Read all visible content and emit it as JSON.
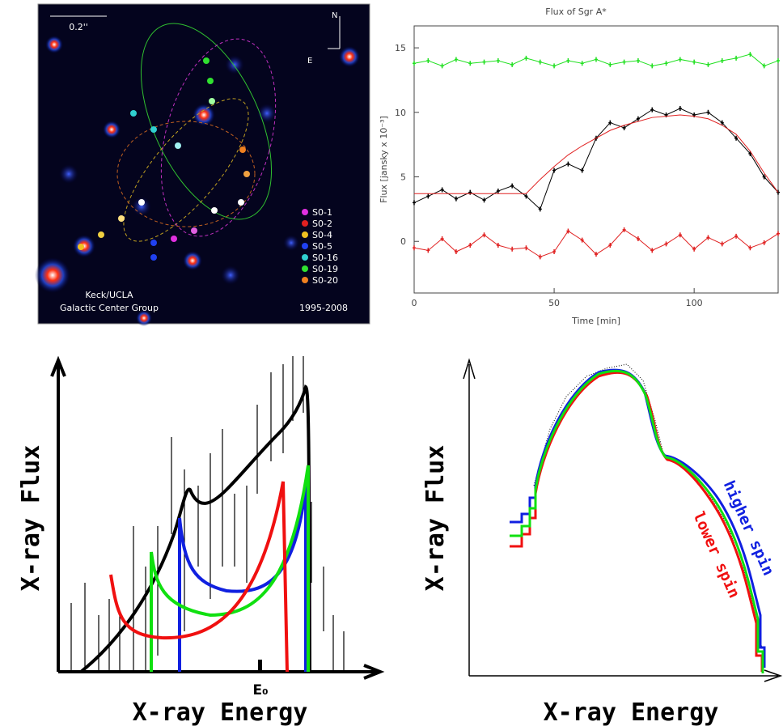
{
  "star_map": {
    "scale": "0.2''",
    "north": "N",
    "east": "E",
    "credit": [
      "Keck/UCLA",
      "Galactic Center Group"
    ],
    "years": "1995-2008",
    "legend": [
      {
        "name": "S0-1",
        "color": "#e030e0"
      },
      {
        "name": "S0-2",
        "color": "#e02020"
      },
      {
        "name": "S0-4",
        "color": "#f0c020"
      },
      {
        "name": "S0-5",
        "color": "#2040f0"
      },
      {
        "name": "S0-16",
        "color": "#30d0d0"
      },
      {
        "name": "S0-19",
        "color": "#30e030"
      },
      {
        "name": "S0-20",
        "color": "#f08020"
      }
    ]
  },
  "chart_data": {
    "type": "line",
    "title": "Flux of Sgr A*",
    "x_label": "Time [min]",
    "y_label": "Flux [jansky x 10⁻³]",
    "x": [
      0,
      5,
      10,
      15,
      20,
      25,
      30,
      35,
      40,
      45,
      50,
      55,
      60,
      65,
      70,
      75,
      80,
      85,
      90,
      95,
      100,
      105,
      110,
      115,
      120,
      125,
      130
    ],
    "series": [
      {
        "color": "#20e020",
        "mode": "markers",
        "values": [
          13.8,
          14.0,
          13.6,
          14.1,
          13.8,
          13.9,
          14.0,
          13.7,
          14.2,
          13.9,
          13.6,
          14.0,
          13.8,
          14.1,
          13.7,
          13.9,
          14.0,
          13.6,
          13.8,
          14.1,
          13.9,
          13.7,
          14.0,
          14.2,
          14.5,
          13.6,
          14.0
        ]
      },
      {
        "color": "#000000",
        "mode": "markers",
        "values": [
          3.0,
          3.5,
          4.0,
          3.3,
          3.8,
          3.2,
          3.9,
          4.3,
          3.5,
          2.5,
          5.5,
          6.0,
          5.5,
          8.0,
          9.2,
          8.8,
          9.5,
          10.2,
          9.8,
          10.3,
          9.8,
          10.0,
          9.2,
          8.0,
          6.8,
          5.0,
          3.8
        ]
      },
      {
        "color": "#e02020",
        "mode": "markers",
        "values": [
          -0.5,
          -0.7,
          0.2,
          -0.8,
          -0.3,
          0.5,
          -0.3,
          -0.6,
          -0.5,
          -1.2,
          -0.8,
          0.8,
          0.1,
          -1.0,
          -0.3,
          0.9,
          0.2,
          -0.7,
          -0.2,
          0.5,
          -0.6,
          0.3,
          -0.2,
          0.4,
          -0.5,
          -0.1,
          0.6
        ]
      },
      {
        "color": "#e02020",
        "mode": "line",
        "values": [
          3.7,
          3.7,
          3.7,
          3.7,
          3.7,
          3.7,
          3.7,
          3.7,
          3.7,
          4.8,
          5.8,
          6.7,
          7.4,
          8.0,
          8.6,
          9.0,
          9.3,
          9.6,
          9.7,
          9.8,
          9.7,
          9.5,
          9.0,
          8.3,
          7.0,
          5.3,
          3.8
        ]
      }
    ],
    "xlim": [
      0,
      130
    ],
    "xticks": [
      0,
      50,
      100
    ],
    "ylim": [
      -4,
      16.7
    ],
    "yticks": [
      0,
      5,
      10,
      15
    ]
  },
  "diagram_left": {
    "y_label": "X-ray Flux",
    "x_label": "X-ray Energy",
    "marker": "E₀"
  },
  "diagram_right": {
    "y_label": "X-ray Flux",
    "x_label": "X-ray Energy",
    "higher": "higher spin",
    "lower": "lower spin"
  }
}
